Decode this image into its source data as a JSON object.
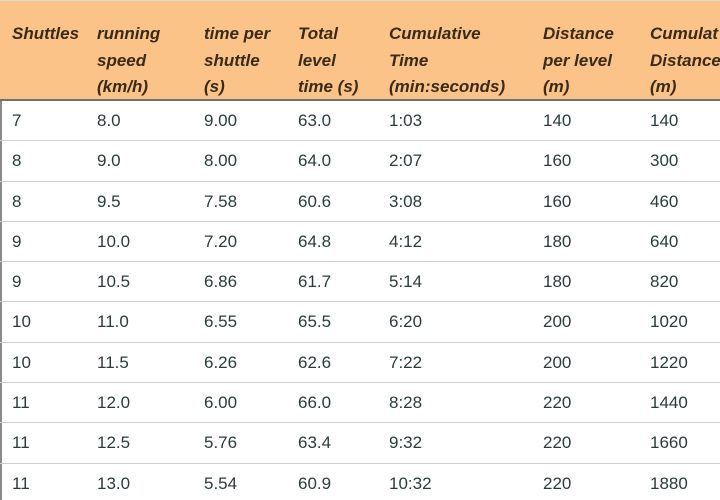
{
  "table": {
    "headers": [
      "Shuttles",
      "running\nspeed\n(km/h)",
      "time per\nshuttle\n(s)",
      "Total\nlevel\ntime (s)",
      "Cumulative\nTime\n(min:seconds)",
      "Distance\nper level\n(m)",
      "Cumulat\nDistance\n(m)"
    ],
    "rows": [
      [
        "7",
        "8.0",
        "9.00",
        "63.0",
        "1:03",
        "140",
        "140"
      ],
      [
        "8",
        "9.0",
        "8.00",
        "64.0",
        "2:07",
        "160",
        "300"
      ],
      [
        "8",
        "9.5",
        "7.58",
        "60.6",
        "3:08",
        "160",
        "460"
      ],
      [
        "9",
        "10.0",
        "7.20",
        "64.8",
        "4:12",
        "180",
        "640"
      ],
      [
        "9",
        "10.5",
        "6.86",
        "61.7",
        "5:14",
        "180",
        "820"
      ],
      [
        "10",
        "11.0",
        "6.55",
        "65.5",
        "6:20",
        "200",
        "1020"
      ],
      [
        "10",
        "11.5",
        "6.26",
        "62.6",
        "7:22",
        "200",
        "1220"
      ],
      [
        "11",
        "12.0",
        "6.00",
        "66.0",
        "8:28",
        "220",
        "1440"
      ],
      [
        "11",
        "12.5",
        "5.76",
        "63.4",
        "9:32",
        "220",
        "1660"
      ],
      [
        "11",
        "13.0",
        "5.54",
        "60.9",
        "10:32",
        "220",
        "1880"
      ]
    ]
  },
  "colors": {
    "header_bg": "#fbc388",
    "header_text": "#3a2a1a",
    "body_text": "#2b3b3b",
    "row_divider": "#cfcfcf"
  }
}
